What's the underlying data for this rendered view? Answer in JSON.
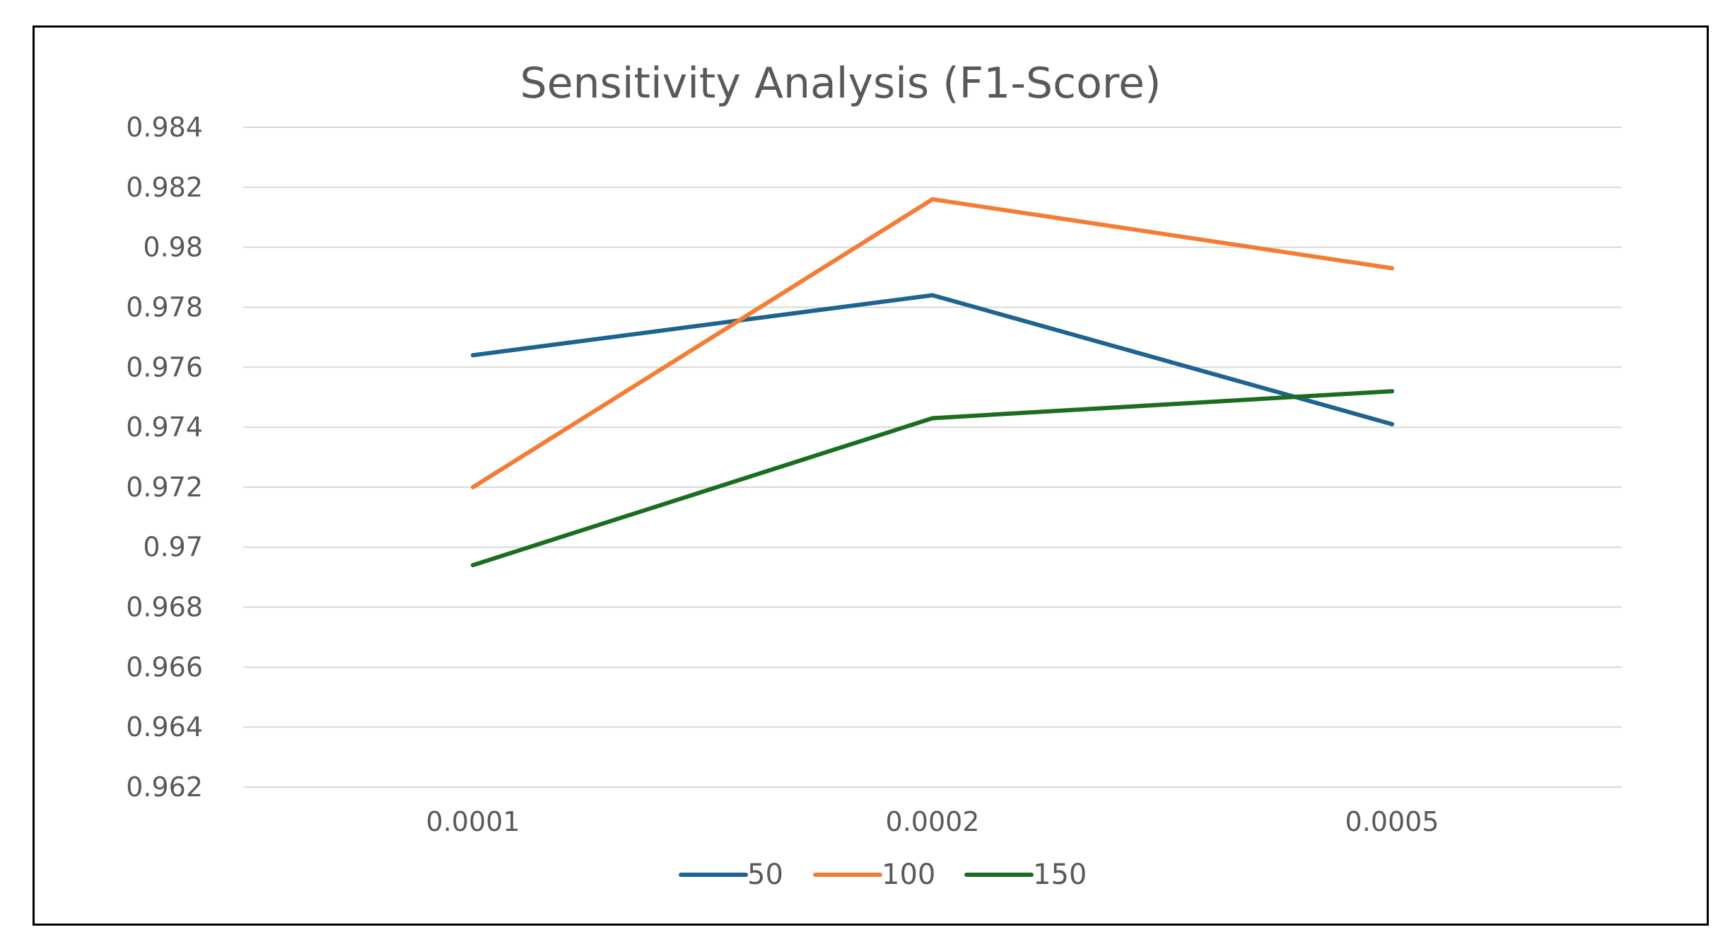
{
  "chart_data": {
    "type": "line",
    "title": "Sensitivity Analysis (F1-Score)",
    "xlabel": "",
    "ylabel": "",
    "categories": [
      "0.0001",
      "0.0002",
      "0.0005"
    ],
    "ylim": [
      0.962,
      0.984
    ],
    "yticks": [
      "0.962",
      "0.964",
      "0.966",
      "0.968",
      "0.97",
      "0.972",
      "0.974",
      "0.976",
      "0.978",
      "0.98",
      "0.982",
      "0.984"
    ],
    "grid": true,
    "legend_position": "bottom",
    "series": [
      {
        "name": "50",
        "color": "#1f6391",
        "values": [
          0.9764,
          0.9784,
          0.9741
        ]
      },
      {
        "name": "100",
        "color": "#f47c35",
        "values": [
          0.972,
          0.9816,
          0.9793
        ]
      },
      {
        "name": "150",
        "color": "#1a6e1e",
        "values": [
          0.9694,
          0.9743,
          0.9752
        ]
      }
    ]
  }
}
